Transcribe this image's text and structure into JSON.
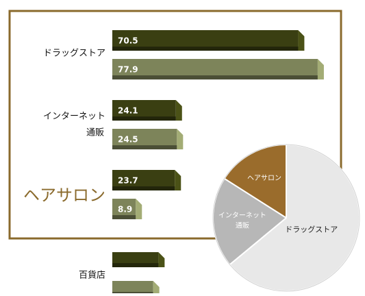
{
  "chart_data": {
    "type": "bar",
    "orientation": "horizontal",
    "categories": [
      {
        "lines": [
          "ドラッグストア"
        ],
        "highlight": false
      },
      {
        "lines": [
          "インターネット",
          "通販"
        ],
        "highlight": false
      },
      {
        "lines": [
          "ヘアサロン"
        ],
        "highlight": true
      },
      {
        "lines": [
          "百貨店"
        ],
        "highlight": false
      }
    ],
    "series": [
      {
        "color": "#3a3f12",
        "values": [
          70.5,
          24.1,
          23.7,
          17.5
        ],
        "labels": [
          "70.5",
          "24.1",
          "23.7",
          ""
        ]
      },
      {
        "color": "#7d845a",
        "values": [
          77.9,
          24.5,
          8.9,
          15.5
        ],
        "labels": [
          "77.9",
          "24.5",
          "8.9",
          ""
        ]
      }
    ],
    "xlim": [
      0,
      80
    ],
    "highlight_color": "#8a6a2c",
    "inset_pie": {
      "type": "pie",
      "slices": [
        {
          "label": [
            "ドラッグストア"
          ],
          "value": 64,
          "color": "#e8e8e8"
        },
        {
          "label": [
            "インターネット",
            "通販"
          ],
          "value": 20,
          "color": "#b7b7b7"
        },
        {
          "label": [
            "ヘアサロン"
          ],
          "value": 16,
          "color": "#9a6c2c"
        }
      ]
    }
  }
}
